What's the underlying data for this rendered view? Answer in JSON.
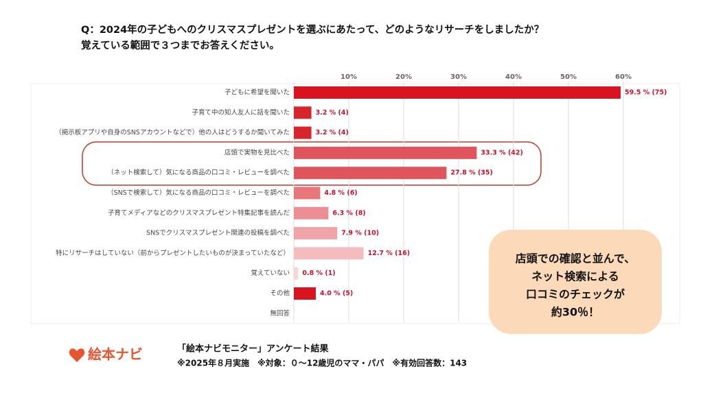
{
  "chart_data": {
    "type": "barh",
    "title": [
      "Q：2024年の子どもへのクリスマスプレゼントを選ぶにあたって、どのようなリサーチをしましたか？",
      "覚えている範囲で３つまでお答えください。"
    ],
    "categories": [
      "子どもに希望を聞いた",
      "子育て中の知人友人に話を聞いた",
      "（掲示板アプリや自身のSNSアカウントなどで）他の人はどうするか聞いてみた",
      "店頭で実物を見比べた",
      "（ネット検索して）気になる商品の口コミ・レビューを調べた",
      "（SNSで検索して）気になる商品の口コミ・レビューを調べた",
      "子育てメディアなどのクリスマスプレゼント特集記事を読んだ",
      "SNSでクリスマスプレゼント関連の投稿を調べた",
      "特にリサーチはしていない（前からプレゼントしたいものが決まっていたなど）",
      "覚えていない",
      "その他",
      "無回答"
    ],
    "values": [
      59.5,
      3.2,
      3.2,
      33.3,
      27.8,
      4.8,
      6.3,
      7.9,
      12.7,
      0.8,
      4.0,
      null
    ],
    "value_labels": [
      "59.5 % (75)",
      "3.2 % (4)",
      "3.2 % (4)",
      "33.3 % (42)",
      "27.8 % (35)",
      "4.8 % (6)",
      "6.3 % (8)",
      "7.9 % (10)",
      "12.7 % (16)",
      "0.8 % (1)",
      "4.0 % (5)",
      null
    ],
    "colors": [
      "#d7141f",
      "#d8252d",
      "#d8252d",
      "#e0555c",
      "#e0555c",
      "#e8777c",
      "#ec8e93",
      "#f0a4a7",
      "#f4bcbe",
      "#f8d6d7",
      "#d7141f",
      null
    ],
    "xlim": [
      0,
      70
    ],
    "xticks": [
      {
        "value": 10,
        "label": "10%"
      },
      {
        "value": 20,
        "label": "20%"
      },
      {
        "value": 30,
        "label": "30%"
      },
      {
        "value": 40,
        "label": "40%"
      },
      {
        "value": 50,
        "label": "50%"
      },
      {
        "value": 60,
        "label": "60%"
      }
    ],
    "grid": true,
    "callout": [
      "店頭での確認と並んで、",
      "ネット検索による",
      "口コミのチェックが",
      "約30％！"
    ],
    "logo": "絵本ナビ",
    "footer": [
      "「絵本ナビモニター」アンケート結果",
      "※2025年８月実施　※対象：０～12歳児のママ・パパ　※有効回答数：143"
    ]
  }
}
